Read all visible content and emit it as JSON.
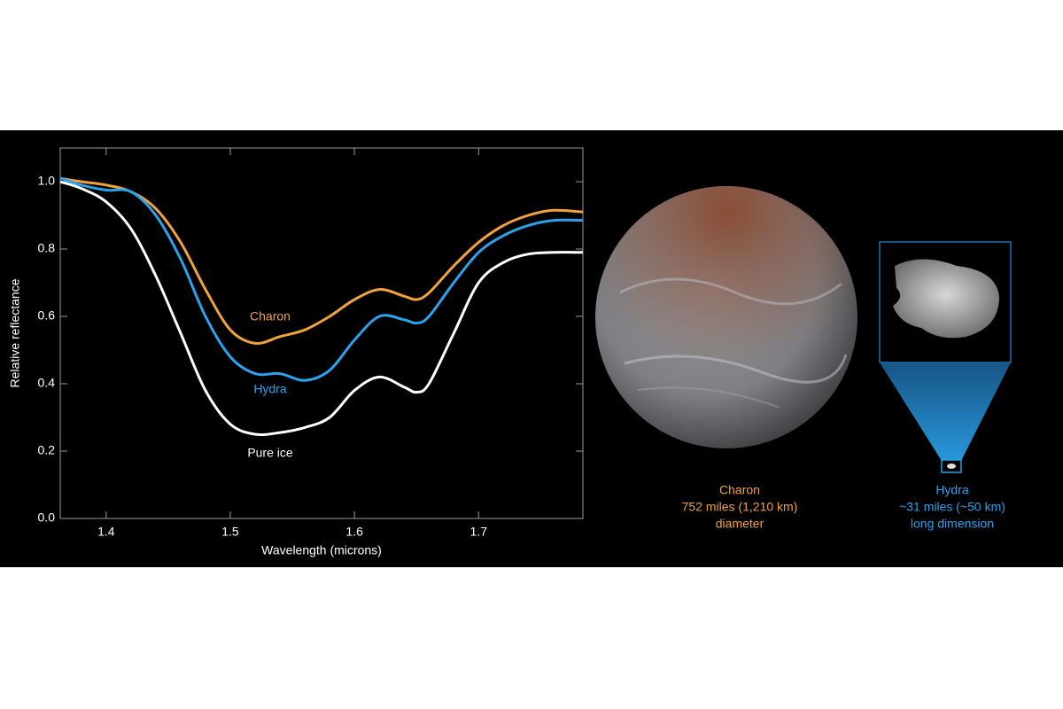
{
  "chart_data": {
    "type": "line",
    "x_label": "Wavelength (microns)",
    "y_label": "Relative reflectance",
    "x": [
      1.363,
      1.38,
      1.4,
      1.42,
      1.44,
      1.46,
      1.48,
      1.5,
      1.52,
      1.54,
      1.56,
      1.58,
      1.6,
      1.62,
      1.64,
      1.65,
      1.66,
      1.68,
      1.7,
      1.72,
      1.74,
      1.76,
      1.784
    ],
    "series": [
      {
        "name": "Charon",
        "color": "#f0a33c",
        "values": [
          1.01,
          1.0,
          0.99,
          0.97,
          0.92,
          0.82,
          0.68,
          0.56,
          0.52,
          0.54,
          0.56,
          0.6,
          0.65,
          0.68,
          0.66,
          0.65,
          0.67,
          0.75,
          0.82,
          0.87,
          0.9,
          0.915,
          0.91
        ]
      },
      {
        "name": "Hydra",
        "color": "#2ba3ec",
        "values": [
          1.01,
          0.99,
          0.975,
          0.97,
          0.9,
          0.77,
          0.6,
          0.48,
          0.43,
          0.43,
          0.41,
          0.44,
          0.53,
          0.6,
          0.59,
          0.58,
          0.6,
          0.7,
          0.79,
          0.84,
          0.87,
          0.885,
          0.885
        ]
      },
      {
        "name": "Pure ice",
        "color": "#ffffff",
        "values": [
          1.0,
          0.98,
          0.94,
          0.86,
          0.72,
          0.55,
          0.38,
          0.28,
          0.25,
          0.255,
          0.27,
          0.3,
          0.38,
          0.42,
          0.39,
          0.375,
          0.4,
          0.55,
          0.7,
          0.76,
          0.785,
          0.79,
          0.79
        ]
      }
    ],
    "xlim": [
      1.363,
      1.784
    ],
    "ylim": [
      0,
      1.1
    ],
    "xticks": [
      1.4,
      1.5,
      1.6,
      1.7
    ],
    "yticks": [
      {
        "value": 0,
        "label": "0.0"
      },
      0.2,
      0.4,
      0.6,
      0.8,
      {
        "value": 1,
        "label": "1.0"
      }
    ],
    "grid": false
  },
  "illustration": {
    "charon_caption": [
      "Charon",
      "752 miles (1,210 km)",
      "diameter"
    ],
    "hydra_caption": [
      "Hydra",
      "~31 miles (~50 km)",
      "long dimension"
    ]
  }
}
